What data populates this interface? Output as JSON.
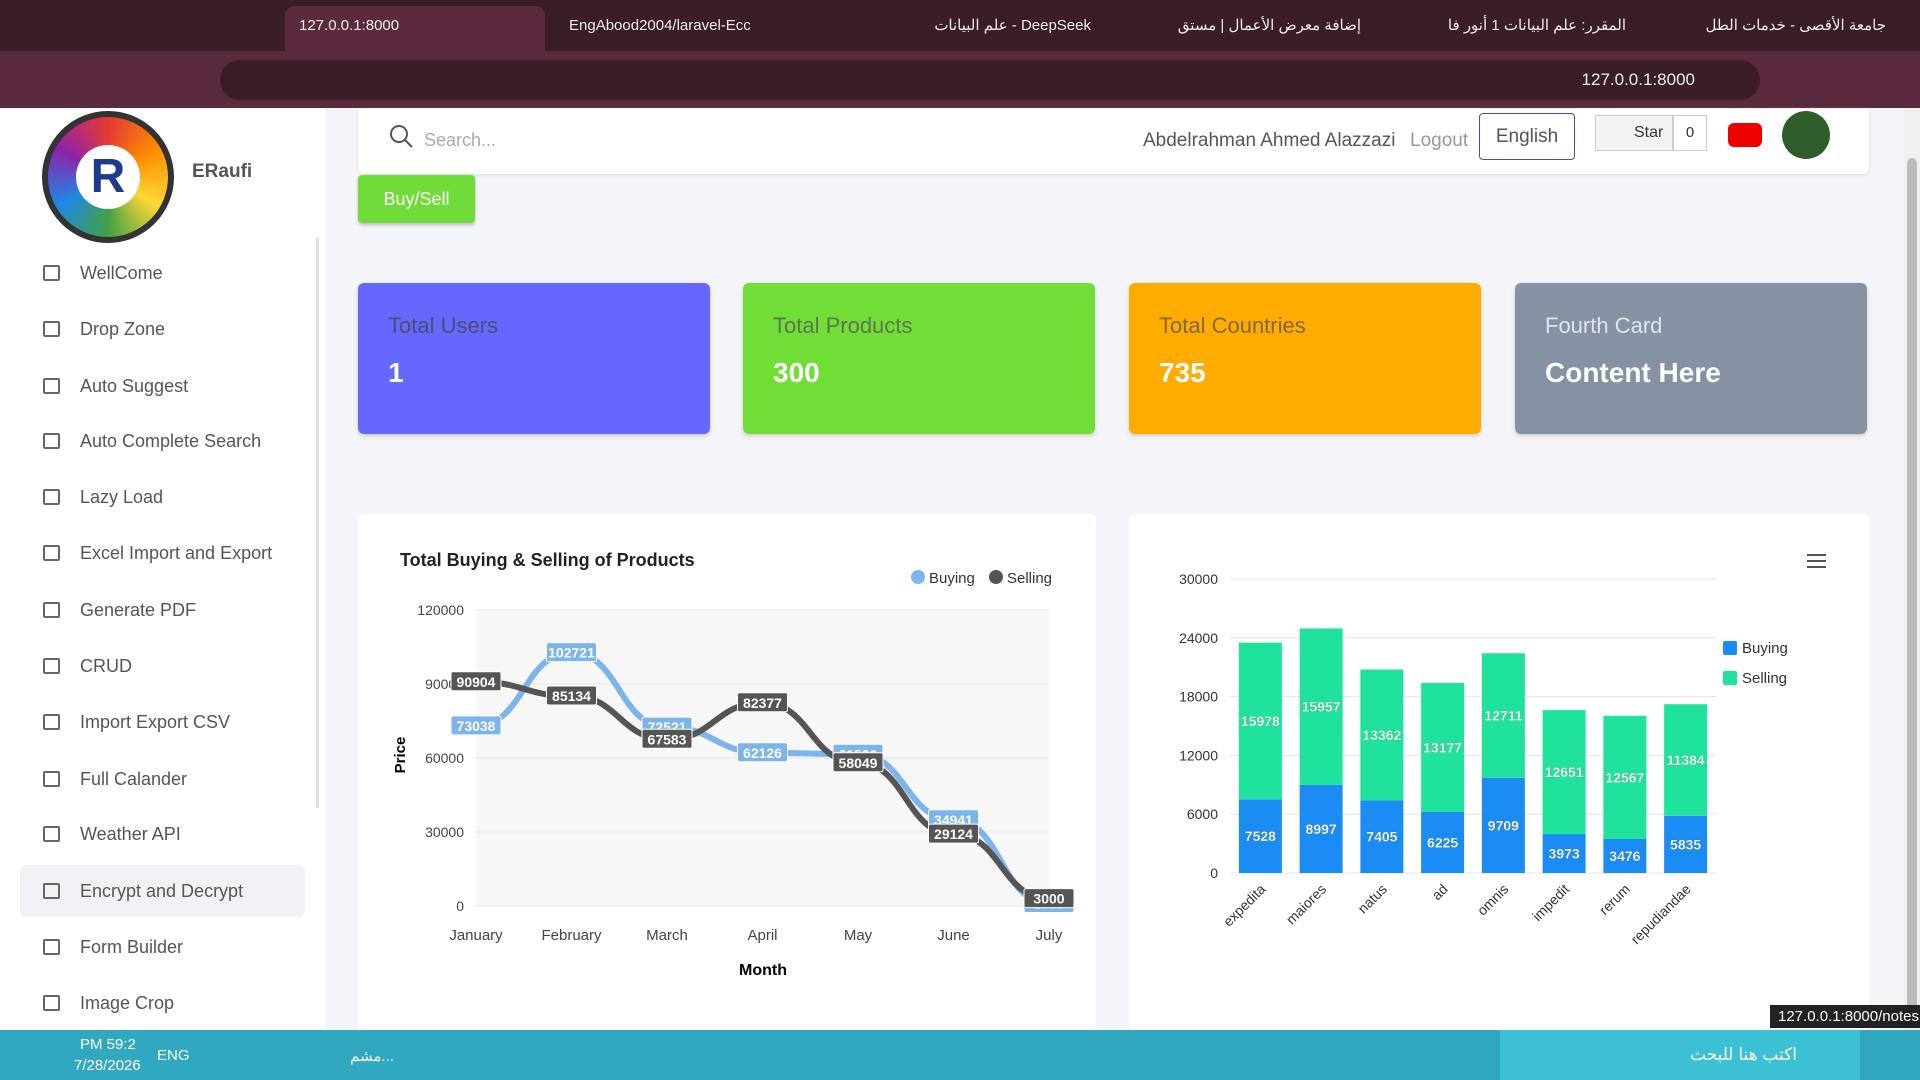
{
  "browser": {
    "tabs": [
      "127.0.0.1:8000",
      "EngAbood2004/laravel-Ecc",
      "DeepSeek - علم البيانات",
      "إضافة معرض الأعمال | مستق",
      "المقرر: علم البيانات 1 أنور فا",
      "جامعة الأقصى - خدمات الطل"
    ],
    "address": "127.0.0.1:8000",
    "status": "127.0.0.1:8000/notes"
  },
  "sidebar": {
    "brand": "ERaufi",
    "menu": [
      "WellCome",
      "Drop Zone",
      "Auto Suggest",
      "Auto Complete Search",
      "Lazy Load",
      "Excel Import and Export",
      "Generate PDF",
      "CRUD",
      "Import Export CSV",
      "Full Calander",
      "Weather API",
      "Encrypt and Decrypt",
      "Form Builder",
      "Image Crop"
    ]
  },
  "header": {
    "search": "Search...",
    "user": "Abdelrahman Ahmed Alazzazi",
    "logout": "Logout",
    "language": "English",
    "star": "Star",
    "star_count": "0",
    "action": "Buy/Sell"
  },
  "cards": [
    {
      "title": "Total Users",
      "value": "1"
    },
    {
      "title": "Total Products",
      "value": "300"
    },
    {
      "title": "Total Countries",
      "value": "735"
    },
    {
      "title": "Fourth Card",
      "value": "Content Here"
    }
  ],
  "chart_data": [
    {
      "type": "line",
      "title": "Total Buying & Selling of Products",
      "y_label": "Price",
      "x_label": "Month",
      "categories": [
        "January",
        "February",
        "March",
        "April",
        "May",
        "June",
        "July"
      ],
      "series": [
        {
          "name": "Buying",
          "color": "#7cb5ec",
          "values": [
            73038,
            102721,
            72521,
            62126,
            61500,
            34941,
            1000
          ]
        },
        {
          "name": "Selling",
          "color": "#555555",
          "values": [
            90904,
            85134,
            67583,
            82377,
            58049,
            29124,
            3000
          ]
        }
      ],
      "ylim": [
        0,
        120000
      ],
      "yticks": [
        0,
        30000,
        60000,
        90000,
        120000
      ],
      "legend": "top-right"
    },
    {
      "type": "bar",
      "stacked": true,
      "categories": [
        "expedita",
        "maiores",
        "natus",
        "ad",
        "omnis",
        "impedit",
        "rerum",
        "repudiandae"
      ],
      "series": [
        {
          "name": "Buying",
          "color": "#1c8cf5",
          "values": [
            7528,
            8997,
            7405,
            6225,
            9709,
            3973,
            3476,
            5835
          ]
        },
        {
          "name": "Selling",
          "color": "#1fe39c",
          "values": [
            15978,
            15957,
            13362,
            13177,
            12711,
            12651,
            12567,
            11384
          ]
        }
      ],
      "ylim": [
        0,
        30000
      ],
      "yticks": [
        0,
        6000,
        12000,
        18000,
        24000,
        30000
      ],
      "grid": true,
      "legend": "right"
    }
  ],
  "taskbar": {
    "time": "PM 59:2",
    "date": "7/28/2026",
    "lang": "ENG",
    "app": "مشم...",
    "search": "اكتب هنا للبحث"
  }
}
